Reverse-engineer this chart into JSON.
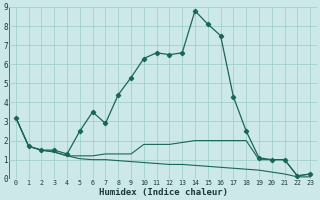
{
  "xlabel": "Humidex (Indice chaleur)",
  "bg_color": "#cce8e8",
  "grid_color": "#99cccc",
  "line_color": "#1a6655",
  "xlim": [
    -0.5,
    23.5
  ],
  "ylim": [
    0,
    9
  ],
  "xticks": [
    0,
    1,
    2,
    3,
    4,
    5,
    6,
    7,
    8,
    9,
    10,
    11,
    12,
    13,
    14,
    15,
    16,
    17,
    18,
    19,
    20,
    21,
    22,
    23
  ],
  "yticks": [
    0,
    1,
    2,
    3,
    4,
    5,
    6,
    7,
    8,
    9
  ],
  "curve1_x": [
    0,
    1,
    2,
    3,
    4,
    5,
    6,
    7,
    8,
    9,
    10,
    11,
    12,
    13,
    14,
    15,
    16,
    17,
    18,
    19,
    20,
    21,
    22,
    23
  ],
  "curve1_y": [
    3.2,
    1.7,
    1.5,
    1.5,
    1.3,
    2.5,
    3.5,
    2.9,
    4.4,
    5.3,
    6.3,
    6.6,
    6.5,
    6.6,
    8.8,
    8.1,
    7.5,
    4.3,
    2.5,
    1.1,
    1.0,
    1.0,
    0.15,
    0.25
  ],
  "curve2_x": [
    0,
    1,
    2,
    3,
    4,
    5,
    6,
    7,
    8,
    9,
    10,
    11,
    12,
    13,
    14,
    15,
    16,
    17,
    18,
    19,
    20,
    21,
    22,
    23
  ],
  "curve2_y": [
    3.2,
    1.7,
    1.5,
    1.4,
    1.2,
    1.2,
    1.2,
    1.3,
    1.3,
    1.3,
    1.8,
    1.8,
    1.8,
    1.9,
    2.0,
    2.0,
    2.0,
    2.0,
    2.0,
    1.0,
    1.0,
    1.0,
    0.15,
    0.25
  ],
  "curve3_x": [
    0,
    1,
    2,
    3,
    4,
    5,
    6,
    7,
    8,
    9,
    10,
    11,
    12,
    13,
    14,
    15,
    16,
    17,
    18,
    19,
    20,
    21,
    22,
    23
  ],
  "curve3_y": [
    3.2,
    1.7,
    1.5,
    1.4,
    1.2,
    1.05,
    1.0,
    1.0,
    0.95,
    0.9,
    0.85,
    0.8,
    0.75,
    0.75,
    0.7,
    0.65,
    0.6,
    0.55,
    0.5,
    0.45,
    0.35,
    0.25,
    0.1,
    0.1
  ]
}
